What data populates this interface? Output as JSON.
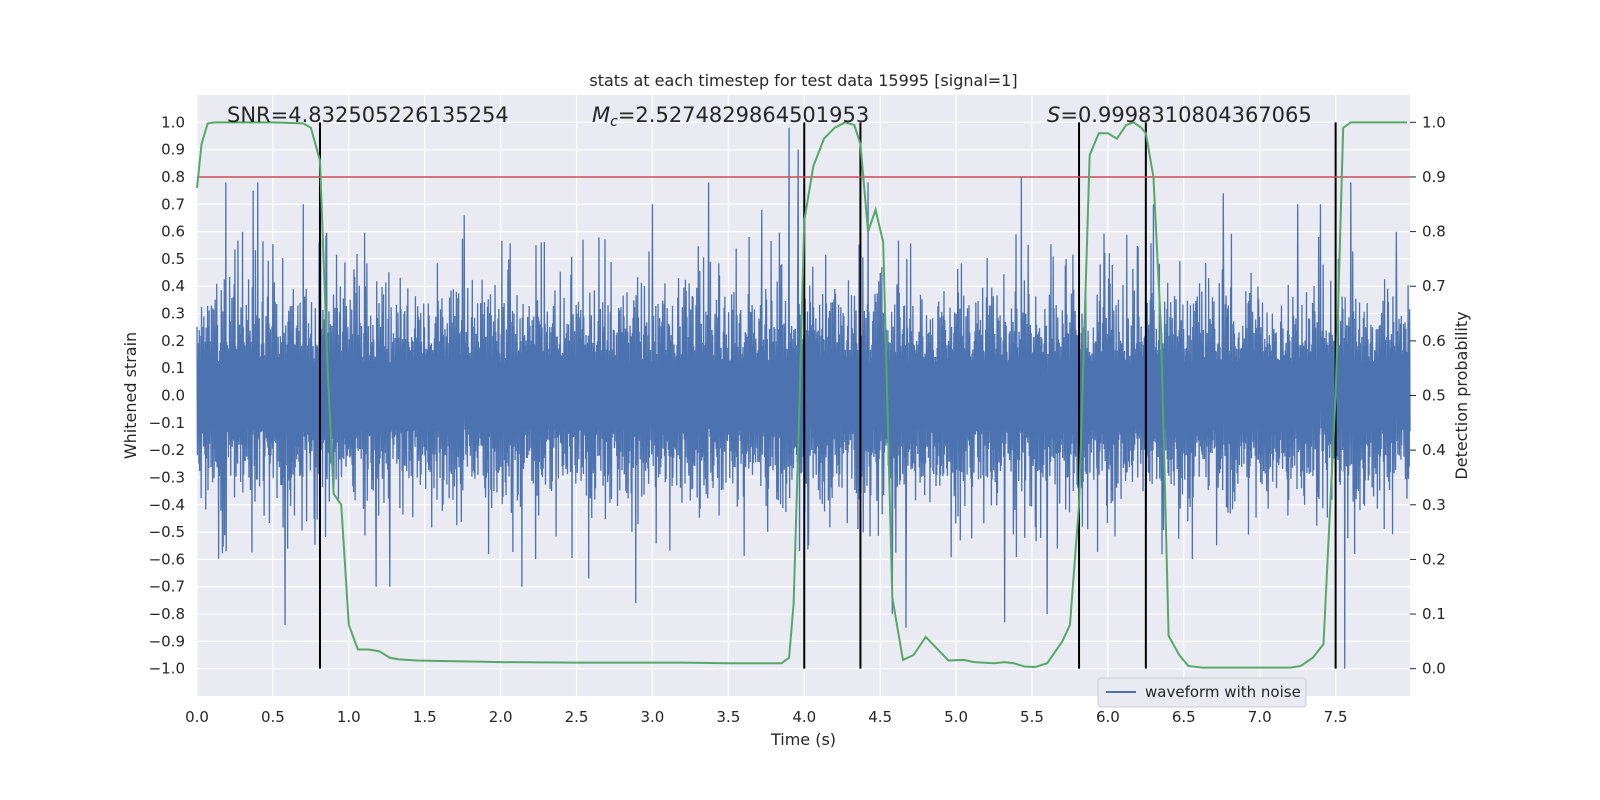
{
  "chart_data": {
    "type": "line",
    "title": "stats at each timestep for test data 15995 [signal=1]",
    "xlabel": "Time (s)",
    "ylabel_left": "Whitened strain",
    "ylabel_right": "Detection probability",
    "xlim": [
      0.0,
      7.99
    ],
    "ylim_left": [
      -1.1,
      1.1
    ],
    "ylim_right": [
      -0.05,
      1.05
    ],
    "grid": true,
    "x_ticks": [
      0.0,
      0.5,
      1.0,
      1.5,
      2.0,
      2.5,
      3.0,
      3.5,
      4.0,
      4.5,
      5.0,
      5.5,
      6.0,
      6.5,
      7.0,
      7.5
    ],
    "x_tick_labels": [
      "0.0",
      "0.5",
      "1.0",
      "1.5",
      "2.0",
      "2.5",
      "3.0",
      "3.5",
      "4.0",
      "4.5",
      "5.0",
      "5.5",
      "6.0",
      "6.5",
      "7.0",
      "7.5"
    ],
    "y_left_ticks": [
      1.0,
      0.9,
      0.8,
      0.7,
      0.6,
      0.5,
      0.4,
      0.3,
      0.2,
      0.1,
      0.0,
      -0.1,
      -0.2,
      -0.3,
      -0.4,
      -0.5,
      -0.6,
      -0.7,
      -0.8,
      -0.9,
      -1.0
    ],
    "y_left_tick_labels": [
      "1.0",
      "0.9",
      "0.8",
      "0.7",
      "0.6",
      "0.5",
      "0.4",
      "0.3",
      "0.2",
      "0.1",
      "0.0",
      "−0.1",
      "−0.2",
      "−0.3",
      "−0.4",
      "−0.5",
      "−0.6",
      "−0.7",
      "−0.8",
      "−0.9",
      "−1.0"
    ],
    "y_right_ticks": [
      1.0,
      0.9,
      0.8,
      0.7,
      0.6,
      0.5,
      0.4,
      0.3,
      0.2,
      0.1,
      0.0
    ],
    "y_right_tick_labels": [
      "1.0",
      "0.9",
      "0.8",
      "0.7",
      "0.6",
      "0.5",
      "0.4",
      "0.3",
      "0.2",
      "0.1",
      "0.0"
    ],
    "annotations": {
      "snr": "SNR=4.832505226135254",
      "mc_symbol": "M",
      "mc_sub": "c",
      "mc_value": "=2.5274829864501953",
      "s_symbol": "S",
      "s_value": "=0.9998310804367065"
    },
    "legend": {
      "label": "waveform with noise",
      "position": "lower-right"
    },
    "threshold_prob": 0.9,
    "vertical_lines_x": [
      0.81,
      4.0,
      4.37,
      5.81,
      6.25,
      7.5
    ],
    "waveform": {
      "name": "waveform with noise",
      "samples": 3200,
      "duration_s": 7.99,
      "bulk_amplitude": 0.3,
      "spikes": [
        {
          "x": 0.19,
          "y": 0.78
        },
        {
          "x": 0.3,
          "y": 0.6
        },
        {
          "x": 0.37,
          "y": 0.75
        },
        {
          "x": 0.4,
          "y": 0.78
        },
        {
          "x": 0.58,
          "y": -0.84
        },
        {
          "x": 0.7,
          "y": 0.7
        },
        {
          "x": 1.18,
          "y": -0.7
        },
        {
          "x": 1.27,
          "y": -0.7
        },
        {
          "x": 1.76,
          "y": 0.66
        },
        {
          "x": 2.14,
          "y": -0.7
        },
        {
          "x": 2.58,
          "y": -0.67
        },
        {
          "x": 2.89,
          "y": -0.76
        },
        {
          "x": 3.0,
          "y": 0.7
        },
        {
          "x": 3.37,
          "y": 0.78
        },
        {
          "x": 3.72,
          "y": 0.68
        },
        {
          "x": 3.9,
          "y": 0.98
        },
        {
          "x": 3.96,
          "y": 0.9
        },
        {
          "x": 4.42,
          "y": 0.78
        },
        {
          "x": 4.58,
          "y": -0.8
        },
        {
          "x": 4.67,
          "y": -0.85
        },
        {
          "x": 5.32,
          "y": -0.83
        },
        {
          "x": 5.43,
          "y": 0.8
        },
        {
          "x": 5.6,
          "y": -0.8
        },
        {
          "x": 6.3,
          "y": 0.7
        },
        {
          "x": 6.76,
          "y": 0.74
        },
        {
          "x": 7.25,
          "y": 0.7
        },
        {
          "x": 7.4,
          "y": 0.7
        },
        {
          "x": 7.56,
          "y": -1.0
        },
        {
          "x": 7.6,
          "y": 0.78
        },
        {
          "x": 7.9,
          "y": 0.6
        }
      ]
    },
    "detection_probability": {
      "x": [
        0.0,
        0.03,
        0.07,
        0.12,
        0.2,
        0.3,
        0.5,
        0.7,
        0.75,
        0.81,
        0.86,
        0.9,
        0.95,
        1.0,
        1.06,
        1.13,
        1.2,
        1.27,
        1.33,
        1.45,
        1.6,
        1.85,
        2.0,
        2.5,
        2.9,
        3.2,
        3.5,
        3.8,
        3.85,
        3.9,
        3.93,
        3.97,
        4.0,
        4.06,
        4.13,
        4.2,
        4.27,
        4.33,
        4.37,
        4.42,
        4.47,
        4.52,
        4.58,
        4.65,
        4.72,
        4.8,
        4.87,
        4.95,
        5.05,
        5.12,
        5.25,
        5.32,
        5.38,
        5.45,
        5.52,
        5.6,
        5.7,
        5.75,
        5.81,
        5.88,
        5.94,
        6.0,
        6.06,
        6.12,
        6.17,
        6.22,
        6.25,
        6.3,
        6.35,
        6.4,
        6.47,
        6.53,
        6.62,
        6.8,
        7.2,
        7.27,
        7.35,
        7.42,
        7.5,
        7.55,
        7.6,
        7.66,
        7.97
      ],
      "y": [
        0.88,
        0.96,
        0.998,
        1.0,
        1.0,
        1.0,
        1.0,
        0.998,
        0.99,
        0.93,
        0.55,
        0.32,
        0.3,
        0.08,
        0.035,
        0.035,
        0.032,
        0.02,
        0.017,
        0.015,
        0.014,
        0.013,
        0.012,
        0.011,
        0.011,
        0.011,
        0.01,
        0.01,
        0.01,
        0.02,
        0.12,
        0.5,
        0.82,
        0.92,
        0.97,
        0.99,
        1.0,
        0.995,
        0.96,
        0.8,
        0.84,
        0.78,
        0.13,
        0.016,
        0.025,
        0.058,
        0.038,
        0.015,
        0.016,
        0.012,
        0.01,
        0.012,
        0.01,
        0.004,
        0.003,
        0.01,
        0.05,
        0.08,
        0.3,
        0.94,
        0.98,
        0.98,
        0.97,
        0.995,
        1.0,
        0.99,
        0.98,
        0.9,
        0.62,
        0.06,
        0.025,
        0.005,
        0.002,
        0.002,
        0.002,
        0.005,
        0.02,
        0.045,
        0.5,
        0.99,
        1.0,
        1.0,
        1.0
      ]
    },
    "colors": {
      "background": "#eaeaf2",
      "grid": "#ffffff",
      "waveform": "#4c72b0",
      "probability": "#55a868",
      "threshold": "#c44e52",
      "vlines": "#000000"
    }
  }
}
